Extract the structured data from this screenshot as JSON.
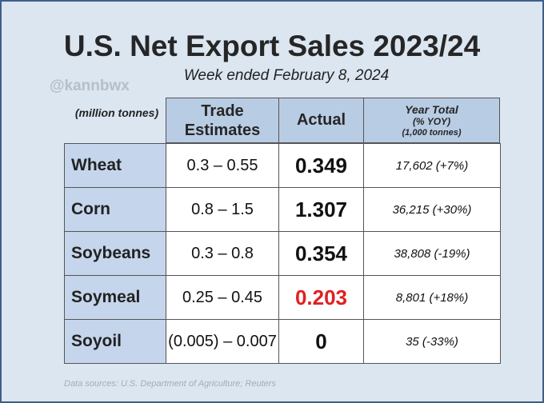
{
  "title": "U.S. Net Export Sales 2023/24",
  "subtitle": "Week ended February 8, 2024",
  "watermark": "@kannbwx",
  "units_label": "(million tonnes)",
  "headers": {
    "trade_estimates": "Trade Estimates",
    "actual": "Actual",
    "year_total_line1": "Year Total",
    "year_total_line2": "(% YOY)",
    "year_total_line3": "(1,000 tonnes)"
  },
  "rows": [
    {
      "commodity": "Wheat",
      "trade_estimates": "0.3 – 0.55",
      "actual": "0.349",
      "year_total": "17,602  (+7%)"
    },
    {
      "commodity": "Corn",
      "trade_estimates": "0.8 – 1.5",
      "actual": "1.307",
      "year_total": "36,215  (+30%)"
    },
    {
      "commodity": "Soybeans",
      "trade_estimates": "0.3 – 0.8",
      "actual": "0.354",
      "year_total": "38,808  (-19%)"
    },
    {
      "commodity": "Soymeal",
      "trade_estimates": "0.25 – 0.45",
      "actual": "0.203",
      "year_total": "8,801  (+18%)"
    },
    {
      "commodity": "Soyoil",
      "trade_estimates": "(0.005) – 0.007",
      "actual": "0",
      "year_total": "35  (-33%)"
    }
  ],
  "highlight_color": "#e02020",
  "sources": "Data sources: U.S. Department of Agriculture; Reuters"
}
